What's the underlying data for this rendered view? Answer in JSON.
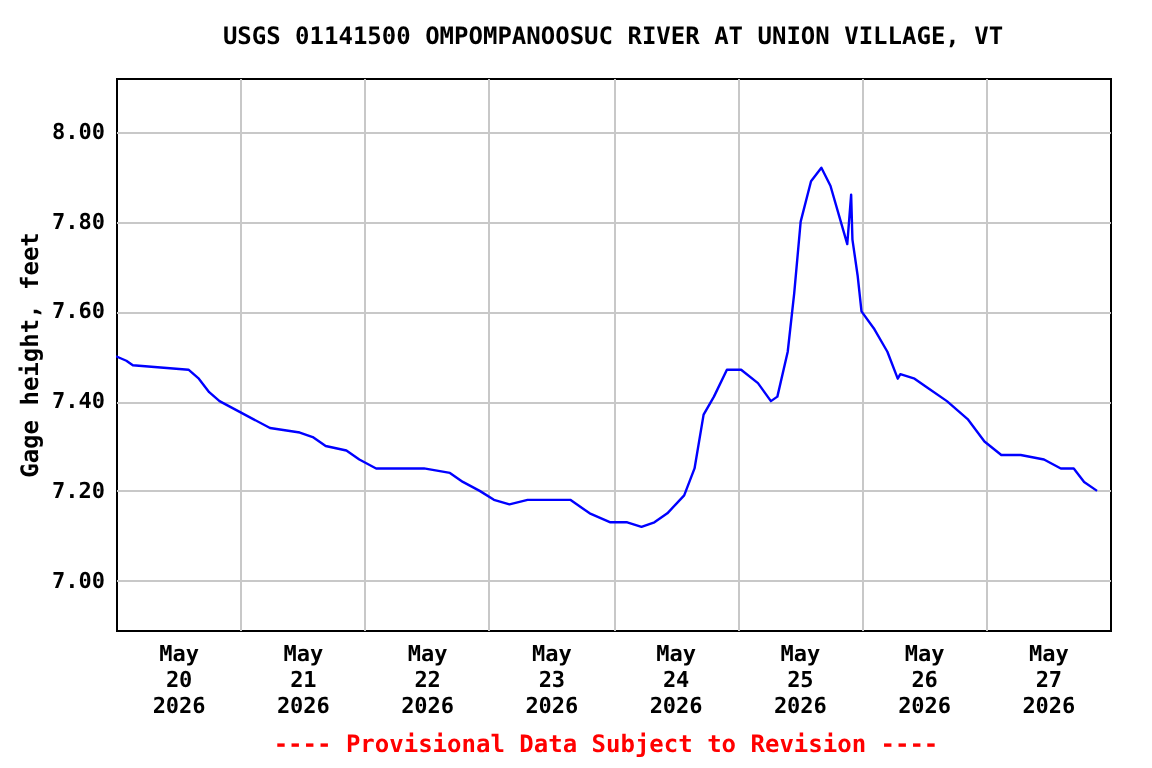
{
  "chart_data": {
    "type": "line",
    "title": "USGS 01141500 OMPOMPANOOSUC RIVER AT UNION VILLAGE, VT",
    "ylabel": "Gage height, feet",
    "annotations": [
      "---- Provisional Data Subject to Revision ----"
    ],
    "x": [
      "2026-05-20T00:00",
      "2026-05-20T02:00",
      "2026-05-20T03:15",
      "2026-05-20T14:00",
      "2026-05-20T16:00",
      "2026-05-20T18:00",
      "2026-05-20T20:00",
      "2026-05-20T23:15",
      "2026-05-21T02:30",
      "2026-05-21T05:45",
      "2026-05-21T11:30",
      "2026-05-21T14:00",
      "2026-05-21T16:30",
      "2026-05-21T20:30",
      "2026-05-21T23:00",
      "2026-05-22T02:15",
      "2026-05-22T11:30",
      "2026-05-22T16:30",
      "2026-05-22T19:00",
      "2026-05-22T22:15",
      "2026-05-23T01:00",
      "2026-05-23T04:00",
      "2026-05-23T07:30",
      "2026-05-23T13:15",
      "2026-05-23T15:45",
      "2026-05-23T19:30",
      "2026-05-23T23:30",
      "2026-05-24T02:45",
      "2026-05-24T05:30",
      "2026-05-24T08:00",
      "2026-05-24T10:30",
      "2026-05-24T13:45",
      "2026-05-24T15:45",
      "2026-05-24T17:30",
      "2026-05-24T19:30",
      "2026-05-24T22:00",
      "2026-05-25T00:45",
      "2026-05-25T04:00",
      "2026-05-25T06:30",
      "2026-05-25T07:45",
      "2026-05-25T09:45",
      "2026-05-25T11:00",
      "2026-05-25T12:15",
      "2026-05-25T14:15",
      "2026-05-25T16:15",
      "2026-05-25T18:00",
      "2026-05-25T20:00",
      "2026-05-25T21:15",
      "2026-05-25T22:00",
      "2026-05-25T22:15",
      "2026-05-25T23:15",
      "2026-05-26T00:00",
      "2026-05-26T02:30",
      "2026-05-26T05:00",
      "2026-05-26T07:00",
      "2026-05-26T07:30",
      "2026-05-26T10:15",
      "2026-05-26T12:45",
      "2026-05-26T16:30",
      "2026-05-26T20:30",
      "2026-05-26T23:45",
      "2026-05-27T03:00",
      "2026-05-27T06:45",
      "2026-05-27T11:15",
      "2026-05-27T14:30",
      "2026-05-27T17:00",
      "2026-05-27T19:00",
      "2026-05-27T21:30"
    ],
    "series": [
      {
        "color": "#0000ff",
        "values": [
          7.5,
          7.49,
          7.48,
          7.47,
          7.45,
          7.42,
          7.4,
          7.38,
          7.36,
          7.34,
          7.33,
          7.32,
          7.3,
          7.29,
          7.27,
          7.25,
          7.25,
          7.24,
          7.22,
          7.2,
          7.18,
          7.17,
          7.18,
          7.18,
          7.18,
          7.15,
          7.13,
          7.13,
          7.12,
          7.13,
          7.15,
          7.19,
          7.25,
          7.37,
          7.41,
          7.47,
          7.47,
          7.44,
          7.4,
          7.41,
          7.51,
          7.64,
          7.8,
          7.89,
          7.92,
          7.88,
          7.8,
          7.75,
          7.86,
          7.76,
          7.68,
          7.6,
          7.56,
          7.51,
          7.45,
          7.46,
          7.45,
          7.43,
          7.4,
          7.36,
          7.31,
          7.28,
          7.28,
          7.27,
          7.25,
          7.25,
          7.22,
          7.2
        ]
      }
    ],
    "xlim": [
      "2026-05-20T00:00",
      "2026-05-28T00:00"
    ],
    "xticks": [
      {
        "value": "2026-05-20T12:00",
        "label": "May 20 2026"
      },
      {
        "value": "2026-05-21T00:00",
        "label": null
      },
      {
        "value": "2026-05-21T12:00",
        "label": "May 21 2026"
      },
      {
        "value": "2026-05-22T00:00",
        "label": null
      },
      {
        "value": "2026-05-22T12:00",
        "label": "May 22 2026"
      },
      {
        "value": "2026-05-23T00:00",
        "label": null
      },
      {
        "value": "2026-05-23T12:00",
        "label": "May 23 2026"
      },
      {
        "value": "2026-05-24T00:00",
        "label": null
      },
      {
        "value": "2026-05-24T12:00",
        "label": "May 24 2026"
      },
      {
        "value": "2026-05-25T00:00",
        "label": null
      },
      {
        "value": "2026-05-25T12:00",
        "label": "May 25 2026"
      },
      {
        "value": "2026-05-26T00:00",
        "label": null
      },
      {
        "value": "2026-05-26T12:00",
        "label": "May 26 2026"
      },
      {
        "value": "2026-05-27T00:00",
        "label": null
      },
      {
        "value": "2026-05-27T12:00",
        "label": "May 27 2026"
      }
    ],
    "ylim": [
      6.89,
      8.12
    ],
    "yticks": [
      {
        "value": 7.0,
        "label": "7.00"
      },
      {
        "value": 7.2,
        "label": "7.20"
      },
      {
        "value": 7.4,
        "label": "7.40"
      },
      {
        "value": 7.6,
        "label": "7.60"
      },
      {
        "value": 7.8,
        "label": "7.80"
      },
      {
        "value": 8.0,
        "label": "8.00"
      }
    ],
    "grid": true,
    "marker": "none",
    "line_style": "solid"
  }
}
